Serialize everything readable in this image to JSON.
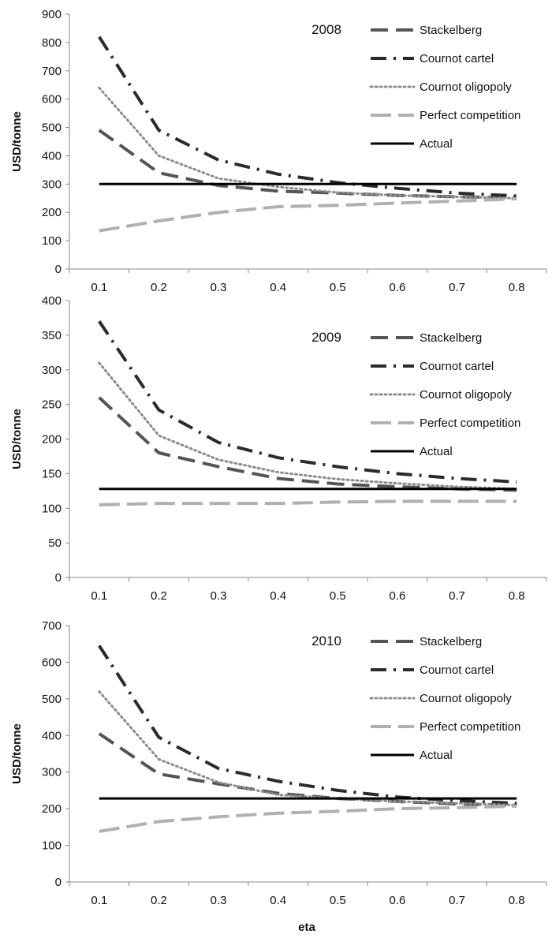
{
  "figure": {
    "xlabel": "eta"
  },
  "chart_data": [
    {
      "type": "line",
      "title": "2008",
      "xlabel": "",
      "ylabel": "USD/tonne",
      "x": [
        0.1,
        0.2,
        0.3,
        0.4,
        0.5,
        0.6,
        0.7,
        0.8
      ],
      "ylim": [
        0,
        900
      ],
      "yticks": [
        0,
        100,
        200,
        300,
        400,
        500,
        600,
        700,
        800,
        900
      ],
      "grid": false,
      "legend": "top-right",
      "series": [
        {
          "name": "Stackelberg",
          "values": [
            490,
            340,
            295,
            275,
            268,
            260,
            255,
            252
          ],
          "color": "#555555",
          "style": "dash"
        },
        {
          "name": "Cournot cartel",
          "values": [
            820,
            490,
            385,
            335,
            305,
            285,
            268,
            258
          ],
          "color": "#2b2b2b",
          "style": "dashdot"
        },
        {
          "name": "Cournot oligopoly",
          "values": [
            640,
            400,
            320,
            290,
            270,
            260,
            255,
            250
          ],
          "color": "#8c8c8c",
          "style": "dot"
        },
        {
          "name": "Perfect competition",
          "values": [
            135,
            170,
            200,
            220,
            225,
            233,
            240,
            248
          ],
          "color": "#b0b0b0",
          "style": "longdash"
        },
        {
          "name": "Actual",
          "values": [
            300,
            300,
            300,
            300,
            300,
            300,
            300,
            300
          ],
          "color": "#000000",
          "style": "solid"
        }
      ]
    },
    {
      "type": "line",
      "title": "2009",
      "xlabel": "",
      "ylabel": "USD/tonne",
      "x": [
        0.1,
        0.2,
        0.3,
        0.4,
        0.5,
        0.6,
        0.7,
        0.8
      ],
      "ylim": [
        0,
        400
      ],
      "yticks": [
        0,
        50,
        100,
        150,
        200,
        250,
        300,
        350,
        400
      ],
      "grid": false,
      "legend": "top-right",
      "series": [
        {
          "name": "Stackelberg",
          "values": [
            260,
            180,
            160,
            143,
            135,
            131,
            128,
            126
          ],
          "color": "#555555",
          "style": "dash"
        },
        {
          "name": "Cournot cartel",
          "values": [
            370,
            242,
            195,
            173,
            160,
            150,
            143,
            138
          ],
          "color": "#2b2b2b",
          "style": "dashdot"
        },
        {
          "name": "Cournot oligopoly",
          "values": [
            310,
            205,
            170,
            152,
            142,
            136,
            131,
            128
          ],
          "color": "#8c8c8c",
          "style": "dot"
        },
        {
          "name": "Perfect competition",
          "values": [
            105,
            107,
            107,
            107,
            109,
            110,
            110,
            110
          ],
          "color": "#b0b0b0",
          "style": "longdash"
        },
        {
          "name": "Actual",
          "values": [
            128,
            128,
            128,
            128,
            128,
            128,
            128,
            128
          ],
          "color": "#000000",
          "style": "solid"
        }
      ]
    },
    {
      "type": "line",
      "title": "2010",
      "xlabel": "eta",
      "ylabel": "USD/tonne",
      "x": [
        0.1,
        0.2,
        0.3,
        0.4,
        0.5,
        0.6,
        0.7,
        0.8
      ],
      "ylim": [
        0,
        700
      ],
      "yticks": [
        0,
        100,
        200,
        300,
        400,
        500,
        600,
        700
      ],
      "grid": false,
      "legend": "top-right",
      "series": [
        {
          "name": "Stackelberg",
          "values": [
            405,
            295,
            268,
            242,
            228,
            220,
            213,
            210
          ],
          "color": "#555555",
          "style": "dash"
        },
        {
          "name": "Cournot cartel",
          "values": [
            645,
            395,
            310,
            275,
            250,
            232,
            222,
            215
          ],
          "color": "#2b2b2b",
          "style": "dashdot"
        },
        {
          "name": "Cournot oligopoly",
          "values": [
            520,
            335,
            272,
            238,
            228,
            220,
            215,
            210
          ],
          "color": "#8c8c8c",
          "style": "dot"
        },
        {
          "name": "Perfect competition",
          "values": [
            138,
            165,
            178,
            188,
            193,
            200,
            203,
            207
          ],
          "color": "#b0b0b0",
          "style": "longdash"
        },
        {
          "name": "Actual",
          "values": [
            228,
            228,
            228,
            228,
            228,
            228,
            228,
            228
          ],
          "color": "#000000",
          "style": "solid"
        }
      ]
    }
  ]
}
